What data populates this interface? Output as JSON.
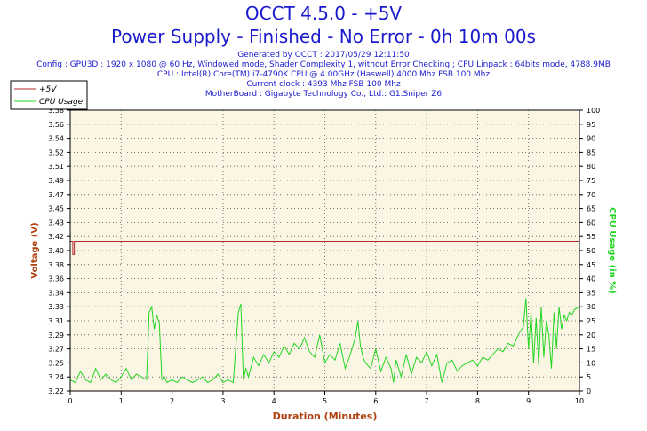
{
  "header": {
    "title": "OCCT 4.5.0 - +5V",
    "subtitle": "Power Supply - Finished - No Error - 0h 10m 00s",
    "generated": "Generated by OCCT : 2017/05/29 12:11:50",
    "config": "Config : GPU3D : 1920 x 1080 @ 60 Hz, Windowed mode, Shader Complexity 1, without Error Checking ; CPU:Linpack : 64bits mode, 4788.9MB",
    "cpu": "CPU : Intel(R) Core(TM) i7-4790K CPU @ 4.00GHz (Haswell) 4000 Mhz FSB 100 Mhz",
    "clock": "Current clock : 4393 Mhz FSB 100 Mhz",
    "motherboard": "MotherBoard : Gigabyte Technology Co., Ltd.: G1.Sniper Z6"
  },
  "colors": {
    "voltage": "#b02a2a",
    "cpu": "#22d622",
    "plot_bg": "#fbf5e4",
    "text": "#1a1acd",
    "axis_label": "#b04010"
  },
  "chart_data": {
    "type": "line",
    "xlabel": "Duration (Minutes)",
    "ylabel": "Voltage (V)",
    "y2label": "CPU Usage (in %)",
    "xlim": [
      0,
      10
    ],
    "ylim": [
      3.22,
      3.58
    ],
    "y2lim": [
      0,
      100
    ],
    "x_ticks": [
      "0",
      "1",
      "2",
      "3",
      "4",
      "5",
      "6",
      "7",
      "8",
      "9",
      "10"
    ],
    "y_ticks": [
      "3.22",
      "3.24",
      "3.25",
      "3.27",
      "3.29",
      "3.31",
      "3.33",
      "3.34",
      "3.36",
      "3.38",
      "3.40",
      "3.42",
      "3.43",
      "3.45",
      "3.47",
      "3.49",
      "3.51",
      "3.52",
      "3.54",
      "3.56",
      "3.58"
    ],
    "y2_ticks": [
      "0",
      "5",
      "10",
      "15",
      "20",
      "25",
      "30",
      "35",
      "40",
      "45",
      "50",
      "55",
      "60",
      "65",
      "70",
      "75",
      "80",
      "85",
      "90",
      "95",
      "100"
    ],
    "grid": true,
    "legend_position": "top-left",
    "series": [
      {
        "name": "+5V",
        "axis": "left",
        "x": [
          0,
          0.05,
          0.05,
          0.08,
          0.08,
          10
        ],
        "y": [
          3.412,
          3.412,
          3.395,
          3.395,
          3.412,
          3.412
        ]
      },
      {
        "name": "CPU Usage",
        "axis": "right",
        "x": [
          0,
          0.1,
          0.2,
          0.3,
          0.4,
          0.5,
          0.6,
          0.7,
          0.8,
          0.9,
          1.0,
          1.1,
          1.2,
          1.3,
          1.4,
          1.5,
          1.55,
          1.6,
          1.65,
          1.7,
          1.75,
          1.8,
          1.85,
          1.9,
          2.0,
          2.1,
          2.2,
          2.3,
          2.4,
          2.5,
          2.6,
          2.7,
          2.8,
          2.9,
          3.0,
          3.1,
          3.2,
          3.3,
          3.35,
          3.4,
          3.45,
          3.5,
          3.6,
          3.7,
          3.8,
          3.9,
          4.0,
          4.1,
          4.2,
          4.3,
          4.4,
          4.5,
          4.6,
          4.7,
          4.8,
          4.9,
          5.0,
          5.1,
          5.2,
          5.3,
          5.4,
          5.5,
          5.6,
          5.65,
          5.7,
          5.75,
          5.8,
          5.9,
          6.0,
          6.1,
          6.2,
          6.3,
          6.35,
          6.4,
          6.5,
          6.6,
          6.7,
          6.8,
          6.9,
          7.0,
          7.1,
          7.2,
          7.3,
          7.4,
          7.5,
          7.6,
          7.7,
          7.8,
          7.9,
          8.0,
          8.1,
          8.2,
          8.3,
          8.4,
          8.5,
          8.6,
          8.7,
          8.8,
          8.9,
          8.95,
          9.0,
          9.05,
          9.1,
          9.15,
          9.2,
          9.25,
          9.3,
          9.35,
          9.4,
          9.45,
          9.5,
          9.55,
          9.6,
          9.65,
          9.7,
          9.75,
          9.8,
          9.85,
          9.9,
          10.0
        ],
        "y": [
          4,
          3,
          7,
          4,
          3,
          8,
          4,
          6,
          4,
          3,
          5,
          8,
          4,
          6,
          5,
          4,
          28,
          30,
          22,
          27,
          24,
          4,
          5,
          3,
          4,
          3,
          5,
          4,
          3,
          4,
          5,
          3,
          4,
          6,
          3,
          4,
          3,
          28,
          31,
          4,
          8,
          5,
          12,
          9,
          13,
          10,
          14,
          12,
          16,
          13,
          17,
          15,
          19,
          14,
          12,
          20,
          10,
          13,
          11,
          17,
          8,
          13,
          19,
          25,
          16,
          12,
          10,
          8,
          15,
          7,
          12,
          8,
          3,
          11,
          5,
          13,
          6,
          12,
          10,
          14,
          9,
          13,
          3,
          10,
          11,
          7,
          9,
          10,
          11,
          9,
          12,
          11,
          13,
          15,
          14,
          17,
          16,
          20,
          23,
          33,
          15,
          28,
          10,
          26,
          9,
          30,
          12,
          25,
          20,
          8,
          28,
          15,
          30,
          22,
          27,
          25,
          28,
          27,
          29,
          30
        ]
      }
    ]
  }
}
